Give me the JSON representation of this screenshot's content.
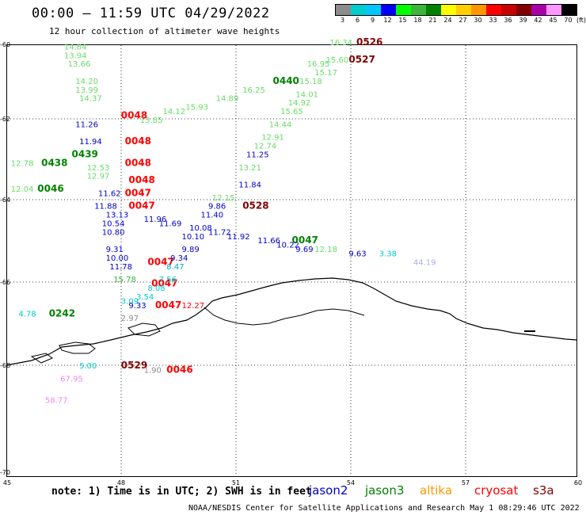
{
  "title": "00:00 – 11:59 UTC 04/29/2022",
  "subtitle": "12 hour collection of altimeter wave heights",
  "colorbar": {
    "labels": [
      "3",
      "6",
      "9",
      "12",
      "15",
      "18",
      "21",
      "24",
      "27",
      "30",
      "33",
      "36",
      "39",
      "42",
      "45",
      "70"
    ],
    "unit": "(ft)",
    "colors": [
      "#8c8c8c",
      "#00cdcd",
      "#00c8ff",
      "#0000ff",
      "#00ff00",
      "#3cb43c",
      "#008200",
      "#ffff00",
      "#ffcd00",
      "#ff9600",
      "#ff0000",
      "#c80000",
      "#820000",
      "#aa00aa",
      "#ff96ff",
      "#000000"
    ]
  },
  "lat_labels": [
    "-60",
    "-62",
    "-64",
    "-66",
    "-68",
    "-70"
  ],
  "lon_labels": [
    "45",
    "48",
    "51",
    "54",
    "57",
    "60"
  ],
  "note": "note: 1) Time is in UTC; 2) SWH is in feet",
  "satellites": {
    "jason2": "jason2",
    "jason3": "jason3",
    "altika": "altika",
    "cryosat": "cryosat",
    "s3a": "s3a",
    "jason2_color": "#0000cc",
    "jason3_color": "#008200",
    "altika_color": "#ff9600",
    "cryosat_color": "#ff0000",
    "s3a_color": "#820000"
  },
  "footer": "NOAA/NESDIS Center for Satellite Applications and Research   May  1 08:29:46 UTC 2022",
  "observations": [
    {
      "t": "14.84",
      "c": "#66dd66",
      "lon": 46.5,
      "lat": -60.1
    },
    {
      "t": "13.94",
      "c": "#66dd66",
      "lon": 46.5,
      "lat": -60.3
    },
    {
      "t": "13.66",
      "c": "#66dd66",
      "lon": 46.6,
      "lat": -60.5
    },
    {
      "t": "14.20",
      "c": "#66dd66",
      "lon": 46.8,
      "lat": -60.9
    },
    {
      "t": "13.99",
      "c": "#66dd66",
      "lon": 46.8,
      "lat": -61.1
    },
    {
      "t": "14.37",
      "c": "#66dd66",
      "lon": 46.9,
      "lat": -61.3
    },
    {
      "t": "0048",
      "c": "#ff0000",
      "lon": 48.0,
      "lat": -61.7,
      "b": 1
    },
    {
      "t": "0048",
      "c": "#ff0000",
      "lon": 48.1,
      "lat": -62.3,
      "b": 1
    },
    {
      "t": "0048",
      "c": "#ff0000",
      "lon": 48.1,
      "lat": -62.8,
      "b": 1
    },
    {
      "t": "0048",
      "c": "#ff0000",
      "lon": 48.2,
      "lat": -63.2,
      "b": 1
    },
    {
      "t": "0047",
      "c": "#ff0000",
      "lon": 48.1,
      "lat": -63.5,
      "b": 1
    },
    {
      "t": "0047",
      "c": "#ff0000",
      "lon": 48.2,
      "lat": -63.8,
      "b": 1
    },
    {
      "t": "0047",
      "c": "#ff0000",
      "lon": 48.7,
      "lat": -65.1,
      "b": 1
    },
    {
      "t": "0047",
      "c": "#ff0000",
      "lon": 48.8,
      "lat": -65.6,
      "b": 1
    },
    {
      "t": "0047",
      "c": "#ff0000",
      "lon": 48.9,
      "lat": -66.1,
      "b": 1
    },
    {
      "t": "0046",
      "c": "#ff0000",
      "lon": 49.2,
      "lat": -67.6,
      "b": 1
    },
    {
      "t": "11.26",
      "c": "#0000cc",
      "lon": 46.8,
      "lat": -61.9
    },
    {
      "t": "11.94",
      "c": "#0000cc",
      "lon": 46.9,
      "lat": -62.3
    },
    {
      "t": "0439",
      "c": "#008200",
      "lon": 46.7,
      "lat": -62.6,
      "b": 1
    },
    {
      "t": "0438",
      "c": "#008200",
      "lon": 45.9,
      "lat": -62.8,
      "b": 1
    },
    {
      "t": "0046",
      "c": "#008200",
      "lon": 45.8,
      "lat": -63.4,
      "b": 1
    },
    {
      "t": "12.78",
      "c": "#66dd66",
      "lon": 45.1,
      "lat": -62.8
    },
    {
      "t": "12.04",
      "c": "#66dd66",
      "lon": 45.1,
      "lat": -63.4
    },
    {
      "t": "12.53",
      "c": "#66dd66",
      "lon": 47.1,
      "lat": -62.9
    },
    {
      "t": "12.97",
      "c": "#66dd66",
      "lon": 47.1,
      "lat": -63.1
    },
    {
      "t": "11.62",
      "c": "#0000cc",
      "lon": 47.4,
      "lat": -63.5
    },
    {
      "t": "11.88",
      "c": "#0000cc",
      "lon": 47.3,
      "lat": -63.8
    },
    {
      "t": "13.13",
      "c": "#0000cc",
      "lon": 47.6,
      "lat": -64.0
    },
    {
      "t": "10.54",
      "c": "#0000cc",
      "lon": 47.5,
      "lat": -64.2
    },
    {
      "t": "10.80",
      "c": "#0000cc",
      "lon": 47.5,
      "lat": -64.4
    },
    {
      "t": "11.96",
      "c": "#0000cc",
      "lon": 48.6,
      "lat": -64.1
    },
    {
      "t": "11.69",
      "c": "#0000cc",
      "lon": 49.0,
      "lat": -64.2
    },
    {
      "t": "10.08",
      "c": "#0000cc",
      "lon": 49.8,
      "lat": -64.3
    },
    {
      "t": "11.40",
      "c": "#0000cc",
      "lon": 50.1,
      "lat": -64.0
    },
    {
      "t": "11.72",
      "c": "#0000cc",
      "lon": 50.3,
      "lat": -64.4
    },
    {
      "t": "11.92",
      "c": "#0000cc",
      "lon": 50.8,
      "lat": -64.5
    },
    {
      "t": "10.10",
      "c": "#0000cc",
      "lon": 49.6,
      "lat": -64.5
    },
    {
      "t": "9.31",
      "c": "#0000cc",
      "lon": 47.6,
      "lat": -64.8
    },
    {
      "t": "10.00",
      "c": "#0000cc",
      "lon": 47.6,
      "lat": -65.0
    },
    {
      "t": "11.78",
      "c": "#0000cc",
      "lon": 47.7,
      "lat": -65.2
    },
    {
      "t": "9.89",
      "c": "#0000cc",
      "lon": 49.6,
      "lat": -64.8
    },
    {
      "t": "9.34",
      "c": "#0000cc",
      "lon": 49.3,
      "lat": -65.0
    },
    {
      "t": "8.47",
      "c": "#00aacc",
      "lon": 49.2,
      "lat": -65.2
    },
    {
      "t": "7.56",
      "c": "#00cdcd",
      "lon": 49.0,
      "lat": -65.5
    },
    {
      "t": "8.08",
      "c": "#00cdcd",
      "lon": 48.7,
      "lat": -65.7
    },
    {
      "t": "3.54",
      "c": "#00cdcd",
      "lon": 48.4,
      "lat": -65.9
    },
    {
      "t": "3.09",
      "c": "#00cdcd",
      "lon": 48.0,
      "lat": -66.0
    },
    {
      "t": "9.33",
      "c": "#0000cc",
      "lon": 48.2,
      "lat": -66.1
    },
    {
      "t": "2.97",
      "c": "#8c8c8c",
      "lon": 48.0,
      "lat": -66.4
    },
    {
      "t": "15.78",
      "c": "#3cb43c",
      "lon": 47.8,
      "lat": -65.5
    },
    {
      "t": "4.78",
      "c": "#00cdcd",
      "lon": 45.3,
      "lat": -66.3
    },
    {
      "t": "0242",
      "c": "#008200",
      "lon": 46.1,
      "lat": -66.3,
      "b": 1
    },
    {
      "t": "12.27",
      "c": "#ff0000",
      "lon": 49.6,
      "lat": -66.1
    },
    {
      "t": "5.00",
      "c": "#00cdcd",
      "lon": 46.9,
      "lat": -67.5
    },
    {
      "t": "0529",
      "c": "#820000",
      "lon": 48.0,
      "lat": -67.5,
      "b": 1
    },
    {
      "t": "1.90",
      "c": "#8c8c8c",
      "lon": 48.6,
      "lat": -67.6
    },
    {
      "t": "67.95",
      "c": "#ee88ee",
      "lon": 46.4,
      "lat": -67.8
    },
    {
      "t": "58.77",
      "c": "#ee88ee",
      "lon": 46.0,
      "lat": -68.3
    },
    {
      "t": "12.15",
      "c": "#66dd66",
      "lon": 50.4,
      "lat": -63.6
    },
    {
      "t": "9.86",
      "c": "#0000cc",
      "lon": 50.3,
      "lat": -63.8
    },
    {
      "t": "0528",
      "c": "#820000",
      "lon": 51.2,
      "lat": -63.8,
      "b": 1
    },
    {
      "t": "11.84",
      "c": "#0000cc",
      "lon": 51.1,
      "lat": -63.3
    },
    {
      "t": "13.21",
      "c": "#66dd66",
      "lon": 51.1,
      "lat": -62.9
    },
    {
      "t": "11.25",
      "c": "#0000cc",
      "lon": 51.3,
      "lat": -62.6
    },
    {
      "t": "12.74",
      "c": "#66dd66",
      "lon": 51.5,
      "lat": -62.4
    },
    {
      "t": "12.91",
      "c": "#66dd66",
      "lon": 51.7,
      "lat": -62.2
    },
    {
      "t": "14.44",
      "c": "#66dd66",
      "lon": 51.9,
      "lat": -61.9
    },
    {
      "t": "15.65",
      "c": "#66dd66",
      "lon": 52.2,
      "lat": -61.6
    },
    {
      "t": "14.92",
      "c": "#66dd66",
      "lon": 52.4,
      "lat": -61.4
    },
    {
      "t": "14.01",
      "c": "#66dd66",
      "lon": 52.6,
      "lat": -61.2
    },
    {
      "t": "15.18",
      "c": "#66dd66",
      "lon": 52.7,
      "lat": -60.9
    },
    {
      "t": "15.17",
      "c": "#66dd66",
      "lon": 53.1,
      "lat": -60.7
    },
    {
      "t": "0440",
      "c": "#008200",
      "lon": 52.0,
      "lat": -60.9,
      "b": 1
    },
    {
      "t": "15.93",
      "c": "#66dd66",
      "lon": 49.7,
      "lat": -61.5
    },
    {
      "t": "14.12",
      "c": "#66dd66",
      "lon": 49.1,
      "lat": -61.6
    },
    {
      "t": "13.85",
      "c": "#66dd66",
      "lon": 48.5,
      "lat": -61.8
    },
    {
      "t": "14.89",
      "c": "#66dd66",
      "lon": 50.5,
      "lat": -61.3
    },
    {
      "t": "16.25",
      "c": "#66dd66",
      "lon": 51.2,
      "lat": -61.1
    },
    {
      "t": "16.95",
      "c": "#66dd66",
      "lon": 52.9,
      "lat": -60.5
    },
    {
      "t": "15.60",
      "c": "#66dd66",
      "lon": 53.4,
      "lat": -60.4
    },
    {
      "t": "16.34",
      "c": "#66dd66",
      "lon": 53.5,
      "lat": -60.0
    },
    {
      "t": "0526",
      "c": "#820000",
      "lon": 54.2,
      "lat": -60.0,
      "b": 1
    },
    {
      "t": "0527",
      "c": "#820000",
      "lon": 54.0,
      "lat": -60.4,
      "b": 1
    },
    {
      "t": "0047",
      "c": "#008200",
      "lon": 52.5,
      "lat": -64.6,
      "b": 1
    },
    {
      "t": "11.66",
      "c": "#0000cc",
      "lon": 51.6,
      "lat": -64.6
    },
    {
      "t": "10.22",
      "c": "#0000cc",
      "lon": 52.1,
      "lat": -64.7
    },
    {
      "t": "12.18",
      "c": "#66dd66",
      "lon": 53.1,
      "lat": -64.8
    },
    {
      "t": "9.69",
      "c": "#0000cc",
      "lon": 52.6,
      "lat": -64.8
    },
    {
      "t": "9.63",
      "c": "#0000cc",
      "lon": 54.0,
      "lat": -64.9
    },
    {
      "t": "3.38",
      "c": "#00cdcd",
      "lon": 54.8,
      "lat": -64.9
    },
    {
      "t": "44.19",
      "c": "#aaaaee",
      "lon": 55.7,
      "lat": -65.1
    }
  ]
}
